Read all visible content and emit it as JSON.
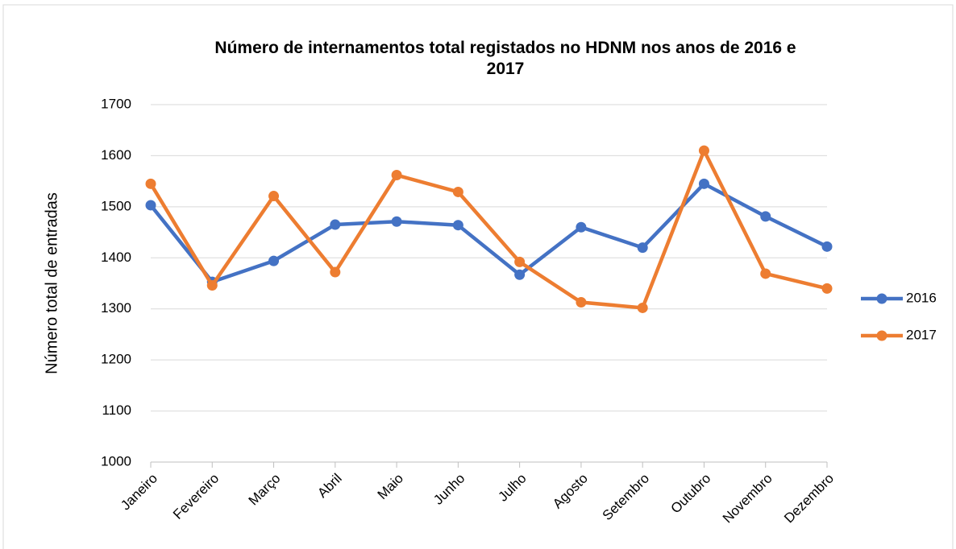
{
  "chart_data": {
    "type": "line",
    "title": "Número de internamentos total registados no HDNM nos anos de 2016 e 2017",
    "y_label": "Número total de entradas",
    "categories": [
      "Janeiro",
      "Fevereiro",
      "Março",
      "Abril",
      "Maio",
      "Junho",
      "Julho",
      "Agosto",
      "Setembro",
      "Outubro",
      "Novembro",
      "Dezembro"
    ],
    "series": [
      {
        "name": "2016",
        "color": "#4472c4",
        "values": [
          1503,
          1353,
          1394,
          1465,
          1471,
          1464,
          1367,
          1460,
          1420,
          1545,
          1481,
          1422
        ]
      },
      {
        "name": "2017",
        "color": "#ed7d31",
        "values": [
          1545,
          1346,
          1521,
          1372,
          1562,
          1529,
          1392,
          1313,
          1302,
          1610,
          1369,
          1340
        ]
      }
    ],
    "ylim": [
      1000,
      1700
    ],
    "yticks": [
      1000,
      1100,
      1200,
      1300,
      1400,
      1500,
      1600,
      1700
    ],
    "grid": true,
    "legend": "right"
  }
}
